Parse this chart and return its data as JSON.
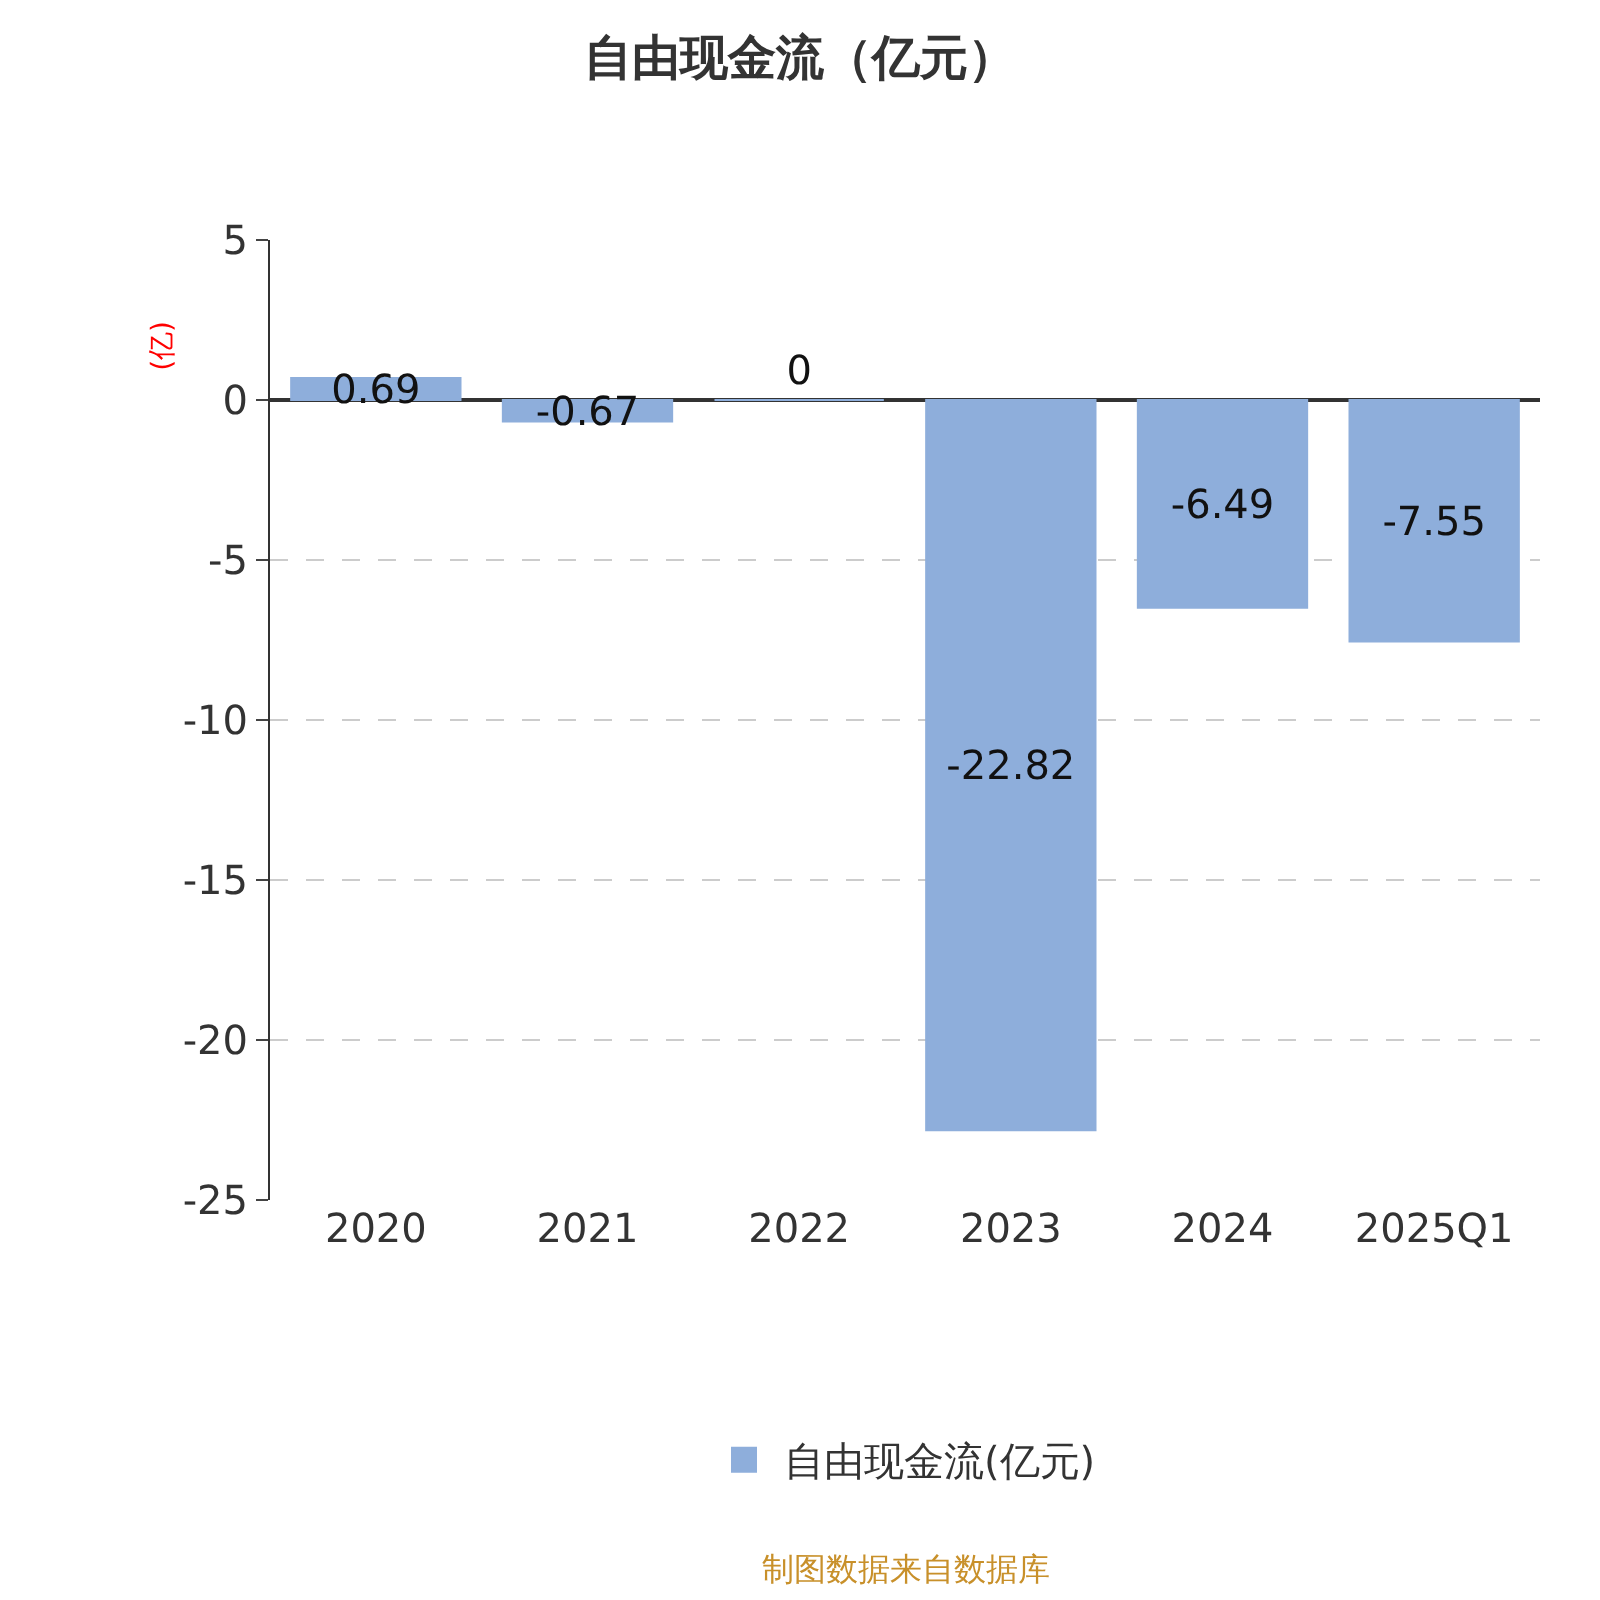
{
  "chart_data": {
    "type": "bar",
    "title": "自由现金流（亿元）",
    "ylabel": "(亿)",
    "categories": [
      "2020",
      "2021",
      "2022",
      "2023",
      "2024",
      "2025Q1"
    ],
    "series": [
      {
        "name": "自由现金流(亿元)",
        "color": "#8eaedb",
        "values": [
          0.69,
          -0.67,
          0,
          -22.82,
          -6.49,
          -7.55
        ]
      }
    ],
    "ylim": [
      -25,
      5
    ],
    "yticks": [
      5,
      0,
      -5,
      -10,
      -15,
      -20,
      -25
    ],
    "grid": "y",
    "legend": "bottom",
    "data_labels": true,
    "annotations": [
      "制图数据来自数据库"
    ]
  }
}
